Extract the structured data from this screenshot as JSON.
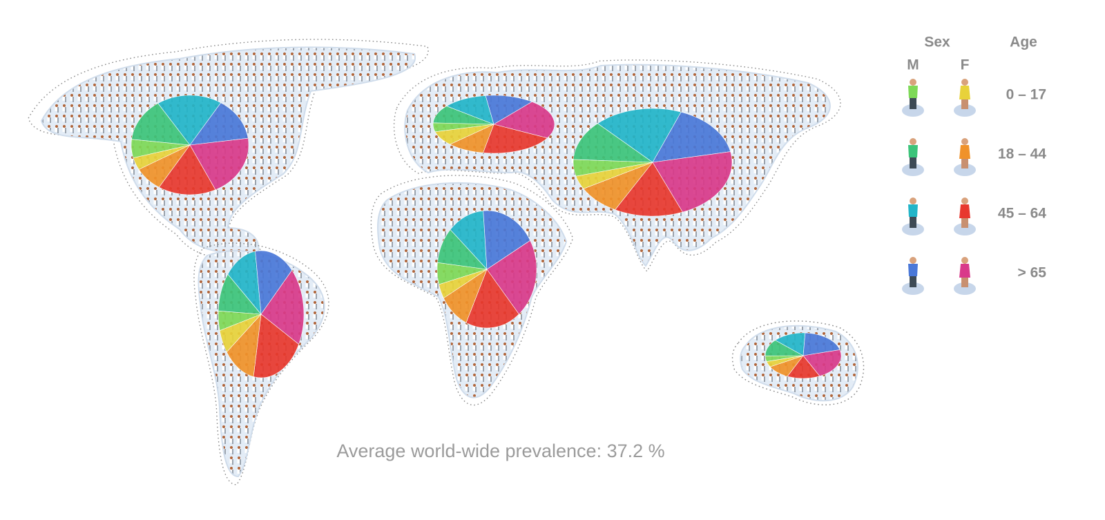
{
  "legend": {
    "sex_title": "Sex",
    "age_title": "Age",
    "male": "M",
    "female": "F",
    "ages": [
      "0 – 17",
      "18 – 44",
      "45 – 64",
      "> 65"
    ],
    "male_colors": [
      "#7ed957",
      "#3cc47a",
      "#22b5c9",
      "#4a78d8"
    ],
    "female_colors": [
      "#e8d23a",
      "#f0922a",
      "#e8382e",
      "#d93a8a"
    ]
  },
  "pies": [
    {
      "values": [
        6,
        14,
        18,
        14,
        20,
        16,
        8,
        4
      ]
    },
    {
      "values": [
        5,
        10,
        12,
        15,
        20,
        20,
        12,
        6
      ]
    },
    {
      "values": [
        5,
        10,
        12,
        13,
        22,
        20,
        10,
        8
      ]
    },
    {
      "values": [
        5,
        12,
        18,
        16,
        22,
        14,
        9,
        4
      ]
    },
    {
      "values": [
        6,
        10,
        12,
        18,
        22,
        18,
        10,
        4
      ]
    },
    {
      "values": [
        4,
        12,
        14,
        20,
        22,
        14,
        10,
        4
      ]
    }
  ],
  "caption": "Average world-wide prevalence: 37.2 %"
}
